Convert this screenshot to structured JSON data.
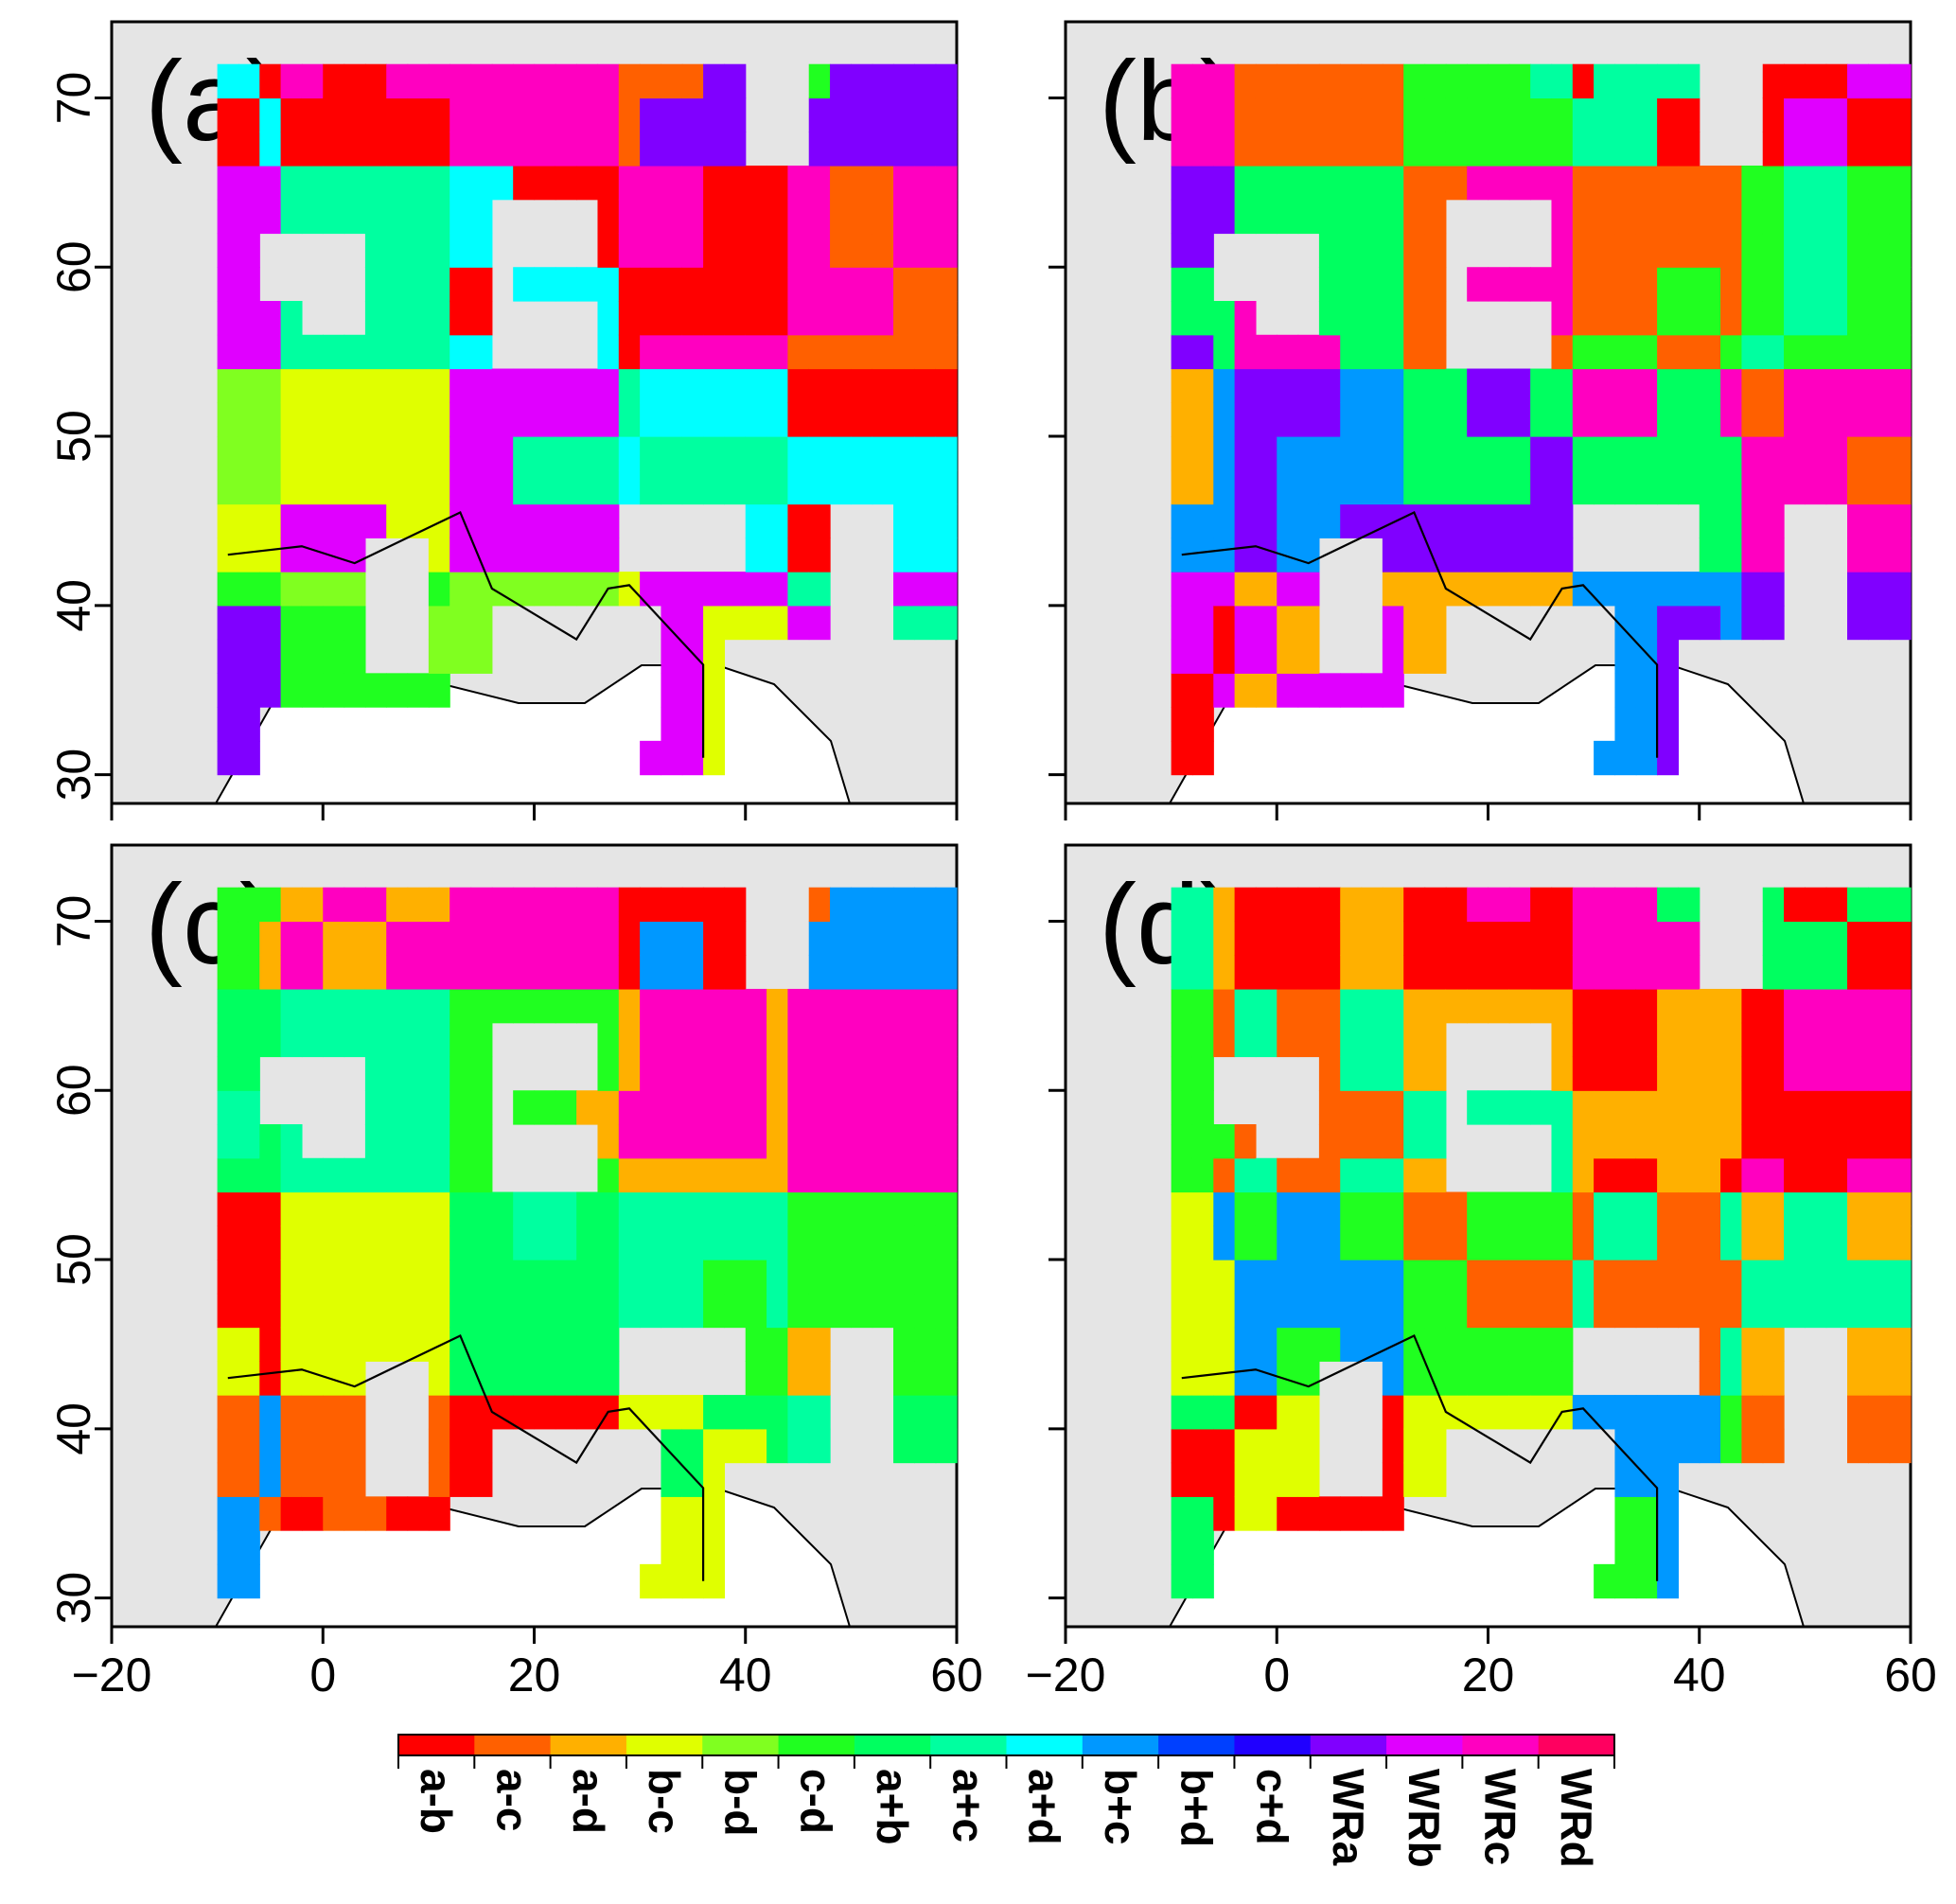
{
  "panels": [
    {
      "label": "(a)"
    },
    {
      "label": "(b)"
    },
    {
      "label": "(c)"
    },
    {
      "label": "(d)"
    }
  ],
  "x_ticks": [
    "−20",
    "0",
    "20",
    "40",
    "60"
  ],
  "x_tick_values": [
    -20,
    0,
    20,
    40,
    60
  ],
  "y_ticks": [
    "30",
    "40",
    "50",
    "60",
    "70"
  ],
  "y_tick_values": [
    30,
    40,
    50,
    60,
    70
  ],
  "x_range": [
    -20,
    60
  ],
  "y_range": [
    28.3,
    74.5
  ],
  "legend": {
    "labels": [
      "a-b",
      "a-c",
      "a-d",
      "b-c",
      "b-d",
      "c-d",
      "a+b",
      "a+c",
      "a+d",
      "b+c",
      "b+d",
      "c+d",
      "WRa",
      "WRb",
      "WRc",
      "WRd"
    ],
    "colors": [
      "#ff0000",
      "#ff6000",
      "#ffb000",
      "#e0ff00",
      "#80ff20",
      "#20ff20",
      "#00ff60",
      "#00ffa0",
      "#00ffff",
      "#0098ff",
      "#0040ff",
      "#2000ff",
      "#8000ff",
      "#e000ff",
      "#ff00c0",
      "#ff0060"
    ]
  },
  "colors": {
    "land": "#e5e5e5",
    "coast": "#000000",
    "frame": "#000000"
  }
}
